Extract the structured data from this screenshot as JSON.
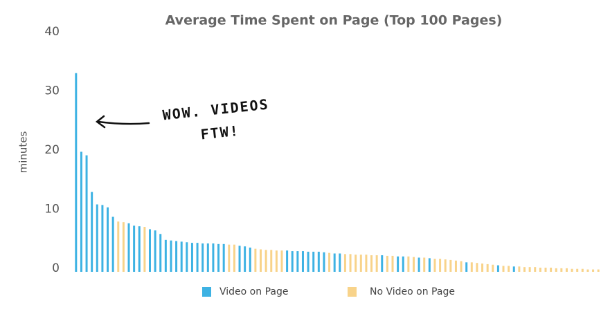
{
  "chart_data": {
    "type": "bar",
    "title": "Average Time Spent on Page (Top 100 Pages)",
    "y_label": "minutes",
    "annotation": [
      "WOW. VIDEOS",
      "FTW!"
    ],
    "categories": [
      null,
      null,
      null,
      null,
      null,
      null,
      null,
      null,
      null,
      null,
      null,
      null,
      null,
      null,
      null,
      null,
      null,
      null,
      null,
      null,
      null,
      null,
      null,
      null,
      null,
      null,
      null,
      null,
      null,
      null,
      null,
      null,
      null,
      null,
      null,
      null,
      null,
      null,
      null,
      null,
      null,
      null,
      null,
      null,
      null,
      null,
      null,
      null,
      null,
      null,
      null,
      null,
      null,
      null,
      null,
      null,
      null,
      null,
      null,
      null,
      null,
      null,
      null,
      null,
      null,
      null,
      null,
      null,
      null,
      null,
      null,
      null,
      null,
      null,
      null,
      null,
      null,
      null,
      null,
      null,
      null,
      null,
      null,
      null,
      null,
      null,
      null,
      null,
      null,
      null,
      null,
      null,
      null,
      null,
      null,
      null,
      null,
      null,
      null,
      null
    ],
    "series": [
      {
        "name": "Video on Page",
        "color": "#3db2e3",
        "values": [
          33.6,
          20.3,
          19.7,
          13.5,
          11.4,
          11.3,
          10.9,
          9.3,
          null,
          null,
          8.2,
          7.8,
          7.7,
          null,
          7.2,
          7.0,
          6.4,
          5.4,
          5.3,
          5.2,
          5.1,
          5.0,
          4.9,
          4.9,
          4.8,
          4.8,
          4.8,
          4.7,
          4.7,
          null,
          null,
          4.4,
          4.3,
          4.1,
          null,
          null,
          null,
          null,
          null,
          null,
          3.6,
          3.5,
          3.5,
          3.5,
          3.4,
          3.4,
          3.4,
          3.3,
          null,
          3.1,
          3.1,
          null,
          null,
          null,
          null,
          null,
          null,
          null,
          2.8,
          null,
          null,
          2.6,
          2.6,
          null,
          null,
          2.4,
          null,
          2.3,
          null,
          null,
          null,
          null,
          null,
          null,
          1.6,
          null,
          null,
          null,
          null,
          null,
          1.1,
          null,
          null,
          0.9,
          null,
          null,
          null,
          null,
          null,
          null,
          null,
          null,
          null,
          null,
          null,
          null,
          null,
          null,
          null,
          null
        ]
      },
      {
        "name": "No Video on Page",
        "color": "#f8d38a",
        "values": [
          null,
          null,
          null,
          null,
          null,
          null,
          null,
          null,
          8.5,
          8.4,
          null,
          null,
          null,
          7.6,
          null,
          null,
          null,
          null,
          null,
          null,
          null,
          null,
          null,
          null,
          null,
          null,
          null,
          null,
          null,
          4.6,
          4.6,
          null,
          null,
          null,
          3.9,
          3.8,
          3.7,
          3.7,
          3.6,
          3.6,
          null,
          null,
          null,
          null,
          null,
          null,
          null,
          null,
          3.2,
          null,
          null,
          3.0,
          3.0,
          2.9,
          2.9,
          2.9,
          2.8,
          2.8,
          null,
          2.7,
          2.7,
          null,
          null,
          2.6,
          2.5,
          null,
          2.4,
          null,
          2.2,
          2.2,
          2.1,
          2.0,
          1.9,
          1.8,
          null,
          1.6,
          1.5,
          1.4,
          1.3,
          1.2,
          null,
          1.0,
          1.0,
          null,
          0.9,
          0.8,
          0.8,
          0.8,
          0.7,
          0.7,
          0.7,
          0.6,
          0.6,
          0.6,
          0.5,
          0.5,
          0.5,
          0.4,
          0.4,
          0.4
        ]
      }
    ],
    "ylim": [
      0,
      40
    ],
    "yticks": [
      0,
      10,
      20,
      30,
      40
    ],
    "grid": false
  }
}
